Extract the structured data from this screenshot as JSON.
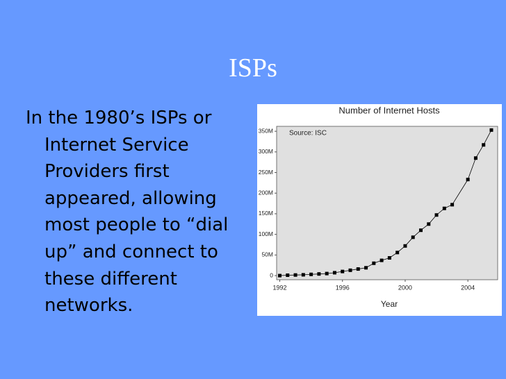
{
  "slide": {
    "title": "ISPs",
    "body_lines": [
      "In the 1980’s ISPs or",
      "Internet Service",
      "Providers first",
      "appeared, allowing",
      "most people to “dial",
      "up” and connect to",
      "these different",
      "networks."
    ]
  },
  "chart_data": {
    "type": "line",
    "title": "Number of Internet Hosts",
    "xlabel": "Year",
    "annotation": "Source: ISC",
    "x": [
      1992,
      1992.5,
      1993,
      1993.5,
      1994,
      1994.5,
      1995,
      1995.5,
      1996,
      1996.5,
      1997,
      1997.5,
      1998,
      1998.5,
      1999,
      1999.5,
      2000,
      2000.5,
      2001,
      2001.5,
      2002,
      2002.5,
      2003,
      2004,
      2004.5,
      2005,
      2005.5
    ],
    "series": [
      {
        "name": "Hosts",
        "color": "#000000",
        "values": [
          0,
          1,
          1.5,
          2,
          3,
          4,
          5,
          7,
          10,
          13,
          16,
          19,
          30,
          37,
          43,
          56,
          72,
          93,
          110,
          125,
          147,
          163,
          172,
          233,
          285,
          317,
          353
        ]
      }
    ],
    "xlim": [
      1991.8,
      2005.9
    ],
    "ylim": [
      -10,
      362
    ],
    "xticks": [
      1992,
      1996,
      2000,
      2004
    ],
    "yticks": [
      0,
      {
        "value": 50,
        "label": "50M"
      },
      {
        "value": 100,
        "label": "100M"
      },
      {
        "value": 150,
        "label": "150M"
      },
      {
        "value": 200,
        "label": "200M"
      },
      {
        "value": 250,
        "label": "250M"
      },
      {
        "value": 300,
        "label": "300M"
      },
      {
        "value": 350,
        "label": "350M"
      }
    ]
  }
}
